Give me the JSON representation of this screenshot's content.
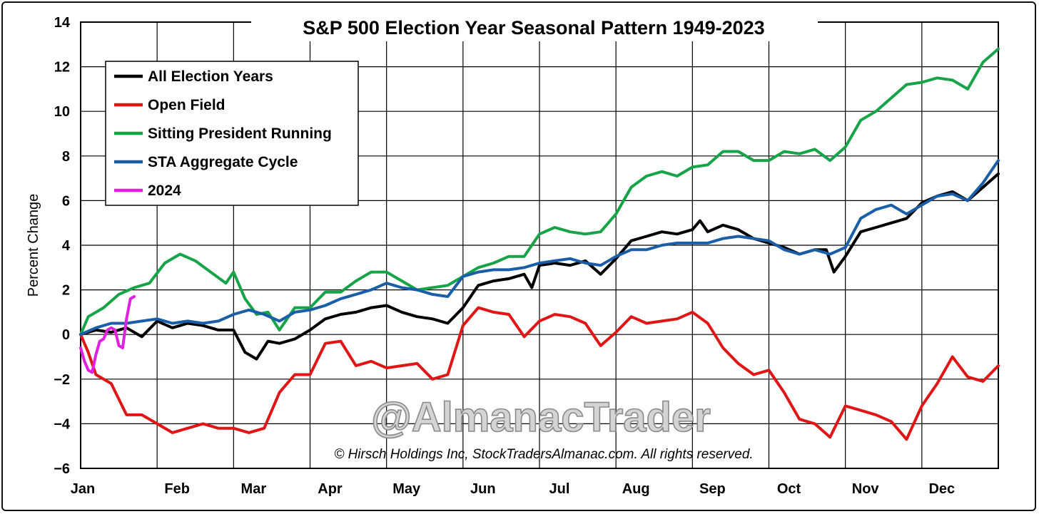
{
  "chart_data": {
    "type": "line",
    "title": "S&P 500 Election Year Seasonal Pattern 1949-2023",
    "ylabel": "Percent Change",
    "xlabel": "",
    "ylim": [
      -6,
      14
    ],
    "yticks": [
      14,
      12,
      10,
      8,
      6,
      4,
      2,
      0,
      -2,
      -4,
      -6
    ],
    "ytick_labels": [
      "14",
      "12",
      "10",
      "8",
      "6",
      "4",
      "2",
      "0",
      "−2",
      "−4",
      "−6"
    ],
    "xlim": [
      0,
      12
    ],
    "month_labels": [
      "Jan",
      "Feb",
      "Mar",
      "Apr",
      "May",
      "Jun",
      "Jul",
      "Aug",
      "Sep",
      "Oct",
      "Nov",
      "Dec"
    ],
    "grid": true,
    "legend_position": "top-left",
    "watermark": "@AlmanacTrader",
    "copyright": "© Hirsch Holdings Inc, StockTradersAlmanac.com. All rights reserved.",
    "series": [
      {
        "name": "All Election Years",
        "color": "#000000",
        "points": [
          [
            0,
            0
          ],
          [
            0.2,
            0.2
          ],
          [
            0.4,
            0.1
          ],
          [
            0.6,
            0.3
          ],
          [
            0.8,
            -0.1
          ],
          [
            1,
            0.6
          ],
          [
            1.2,
            0.3
          ],
          [
            1.4,
            0.5
          ],
          [
            1.6,
            0.4
          ],
          [
            1.8,
            0.2
          ],
          [
            2,
            0.2
          ],
          [
            2.15,
            -0.8
          ],
          [
            2.3,
            -1.1
          ],
          [
            2.45,
            -0.3
          ],
          [
            2.6,
            -0.4
          ],
          [
            2.8,
            -0.2
          ],
          [
            3,
            0.2
          ],
          [
            3.2,
            0.7
          ],
          [
            3.4,
            0.9
          ],
          [
            3.6,
            1
          ],
          [
            3.8,
            1.2
          ],
          [
            4,
            1.3
          ],
          [
            4.2,
            1
          ],
          [
            4.4,
            0.8
          ],
          [
            4.6,
            0.7
          ],
          [
            4.8,
            0.5
          ],
          [
            5,
            1.2
          ],
          [
            5.2,
            2.2
          ],
          [
            5.4,
            2.4
          ],
          [
            5.6,
            2.5
          ],
          [
            5.8,
            2.7
          ],
          [
            5.9,
            2.1
          ],
          [
            6,
            3.1
          ],
          [
            6.2,
            3.2
          ],
          [
            6.4,
            3.1
          ],
          [
            6.6,
            3.3
          ],
          [
            6.8,
            2.7
          ],
          [
            7,
            3.4
          ],
          [
            7.2,
            4.2
          ],
          [
            7.4,
            4.4
          ],
          [
            7.6,
            4.6
          ],
          [
            7.8,
            4.5
          ],
          [
            8,
            4.7
          ],
          [
            8.1,
            5.1
          ],
          [
            8.2,
            4.6
          ],
          [
            8.4,
            4.9
          ],
          [
            8.6,
            4.7
          ],
          [
            8.8,
            4.3
          ],
          [
            9,
            4.1
          ],
          [
            9.2,
            3.9
          ],
          [
            9.4,
            3.6
          ],
          [
            9.6,
            3.8
          ],
          [
            9.75,
            3.8
          ],
          [
            9.85,
            2.8
          ],
          [
            10,
            3.5
          ],
          [
            10.2,
            4.6
          ],
          [
            10.4,
            4.8
          ],
          [
            10.6,
            5
          ],
          [
            10.8,
            5.2
          ],
          [
            11,
            5.9
          ],
          [
            11.2,
            6.2
          ],
          [
            11.4,
            6.4
          ],
          [
            11.6,
            6
          ],
          [
            11.8,
            6.6
          ],
          [
            12,
            7.2
          ]
        ]
      },
      {
        "name": "Open Field",
        "color": "#e01616",
        "points": [
          [
            0,
            0
          ],
          [
            0.1,
            -0.8
          ],
          [
            0.2,
            -1.8
          ],
          [
            0.4,
            -2.2
          ],
          [
            0.6,
            -3.6
          ],
          [
            0.8,
            -3.6
          ],
          [
            1,
            -4
          ],
          [
            1.2,
            -4.4
          ],
          [
            1.4,
            -4.2
          ],
          [
            1.6,
            -4
          ],
          [
            1.8,
            -4.2
          ],
          [
            2,
            -4.2
          ],
          [
            2.2,
            -4.4
          ],
          [
            2.4,
            -4.2
          ],
          [
            2.6,
            -2.6
          ],
          [
            2.8,
            -1.8
          ],
          [
            3,
            -1.8
          ],
          [
            3.2,
            -0.4
          ],
          [
            3.4,
            -0.3
          ],
          [
            3.6,
            -1.4
          ],
          [
            3.8,
            -1.2
          ],
          [
            4,
            -1.5
          ],
          [
            4.2,
            -1.4
          ],
          [
            4.4,
            -1.3
          ],
          [
            4.6,
            -2
          ],
          [
            4.8,
            -1.8
          ],
          [
            5,
            0.4
          ],
          [
            5.2,
            1.2
          ],
          [
            5.4,
            1
          ],
          [
            5.6,
            0.9
          ],
          [
            5.8,
            -0.1
          ],
          [
            6,
            0.6
          ],
          [
            6.2,
            0.9
          ],
          [
            6.4,
            0.8
          ],
          [
            6.6,
            0.5
          ],
          [
            6.8,
            -0.5
          ],
          [
            7,
            0.1
          ],
          [
            7.2,
            0.8
          ],
          [
            7.4,
            0.5
          ],
          [
            7.6,
            0.6
          ],
          [
            7.8,
            0.7
          ],
          [
            8,
            1
          ],
          [
            8.2,
            0.5
          ],
          [
            8.4,
            -0.6
          ],
          [
            8.6,
            -1.3
          ],
          [
            8.8,
            -1.8
          ],
          [
            9,
            -1.6
          ],
          [
            9.2,
            -2.6
          ],
          [
            9.4,
            -3.8
          ],
          [
            9.6,
            -4
          ],
          [
            9.8,
            -4.6
          ],
          [
            10,
            -3.2
          ],
          [
            10.2,
            -3.4
          ],
          [
            10.4,
            -3.6
          ],
          [
            10.6,
            -3.9
          ],
          [
            10.8,
            -4.7
          ],
          [
            11,
            -3.2
          ],
          [
            11.2,
            -2.2
          ],
          [
            11.4,
            -1
          ],
          [
            11.6,
            -1.9
          ],
          [
            11.8,
            -2.1
          ],
          [
            12,
            -1.4
          ]
        ]
      },
      {
        "name": "Sitting President Running",
        "color": "#17a347",
        "points": [
          [
            0,
            0
          ],
          [
            0.1,
            0.8
          ],
          [
            0.3,
            1.2
          ],
          [
            0.5,
            1.8
          ],
          [
            0.7,
            2.1
          ],
          [
            0.9,
            2.3
          ],
          [
            1.1,
            3.2
          ],
          [
            1.3,
            3.6
          ],
          [
            1.5,
            3.3
          ],
          [
            1.7,
            2.8
          ],
          [
            1.9,
            2.3
          ],
          [
            2,
            2.8
          ],
          [
            2.15,
            1.6
          ],
          [
            2.3,
            0.9
          ],
          [
            2.45,
            1
          ],
          [
            2.6,
            0.2
          ],
          [
            2.8,
            1.2
          ],
          [
            3,
            1.2
          ],
          [
            3.2,
            1.9
          ],
          [
            3.4,
            1.9
          ],
          [
            3.6,
            2.4
          ],
          [
            3.8,
            2.8
          ],
          [
            4,
            2.8
          ],
          [
            4.2,
            2.4
          ],
          [
            4.4,
            2
          ],
          [
            4.6,
            2.1
          ],
          [
            4.8,
            2.2
          ],
          [
            5,
            2.6
          ],
          [
            5.2,
            3
          ],
          [
            5.4,
            3.2
          ],
          [
            5.6,
            3.5
          ],
          [
            5.8,
            3.5
          ],
          [
            6,
            4.5
          ],
          [
            6.2,
            4.8
          ],
          [
            6.4,
            4.6
          ],
          [
            6.6,
            4.5
          ],
          [
            6.8,
            4.6
          ],
          [
            7,
            5.4
          ],
          [
            7.2,
            6.6
          ],
          [
            7.4,
            7.1
          ],
          [
            7.6,
            7.3
          ],
          [
            7.8,
            7.1
          ],
          [
            8,
            7.5
          ],
          [
            8.2,
            7.6
          ],
          [
            8.4,
            8.2
          ],
          [
            8.6,
            8.2
          ],
          [
            8.8,
            7.8
          ],
          [
            9,
            7.8
          ],
          [
            9.2,
            8.2
          ],
          [
            9.4,
            8.1
          ],
          [
            9.6,
            8.3
          ],
          [
            9.8,
            7.8
          ],
          [
            10,
            8.4
          ],
          [
            10.2,
            9.6
          ],
          [
            10.4,
            10
          ],
          [
            10.6,
            10.6
          ],
          [
            10.8,
            11.2
          ],
          [
            11,
            11.3
          ],
          [
            11.2,
            11.5
          ],
          [
            11.4,
            11.4
          ],
          [
            11.6,
            11
          ],
          [
            11.8,
            12.2
          ],
          [
            12,
            12.8
          ]
        ]
      },
      {
        "name": "STA Aggregate Cycle",
        "color": "#1a5ea8",
        "points": [
          [
            0,
            0
          ],
          [
            0.2,
            0.3
          ],
          [
            0.4,
            0.5
          ],
          [
            0.6,
            0.5
          ],
          [
            0.8,
            0.6
          ],
          [
            1,
            0.7
          ],
          [
            1.2,
            0.5
          ],
          [
            1.4,
            0.6
          ],
          [
            1.6,
            0.5
          ],
          [
            1.8,
            0.6
          ],
          [
            2,
            0.9
          ],
          [
            2.2,
            1.1
          ],
          [
            2.4,
            0.9
          ],
          [
            2.6,
            0.6
          ],
          [
            2.8,
            1
          ],
          [
            3,
            1.1
          ],
          [
            3.2,
            1.3
          ],
          [
            3.4,
            1.6
          ],
          [
            3.6,
            1.8
          ],
          [
            3.8,
            2
          ],
          [
            4,
            2.3
          ],
          [
            4.2,
            2.1
          ],
          [
            4.4,
            2
          ],
          [
            4.6,
            1.8
          ],
          [
            4.8,
            1.7
          ],
          [
            5,
            2.6
          ],
          [
            5.2,
            2.8
          ],
          [
            5.4,
            2.9
          ],
          [
            5.6,
            2.9
          ],
          [
            5.8,
            3
          ],
          [
            6,
            3.2
          ],
          [
            6.2,
            3.3
          ],
          [
            6.4,
            3.4
          ],
          [
            6.6,
            3.2
          ],
          [
            6.8,
            3.1
          ],
          [
            7,
            3.5
          ],
          [
            7.2,
            3.8
          ],
          [
            7.4,
            3.8
          ],
          [
            7.6,
            4
          ],
          [
            7.8,
            4.1
          ],
          [
            8,
            4.1
          ],
          [
            8.2,
            4.1
          ],
          [
            8.4,
            4.3
          ],
          [
            8.6,
            4.4
          ],
          [
            8.8,
            4.3
          ],
          [
            9,
            4.2
          ],
          [
            9.2,
            3.8
          ],
          [
            9.4,
            3.6
          ],
          [
            9.6,
            3.8
          ],
          [
            9.8,
            3.6
          ],
          [
            10,
            3.9
          ],
          [
            10.2,
            5.2
          ],
          [
            10.4,
            5.6
          ],
          [
            10.6,
            5.8
          ],
          [
            10.8,
            5.4
          ],
          [
            11,
            5.8
          ],
          [
            11.2,
            6.2
          ],
          [
            11.4,
            6.3
          ],
          [
            11.6,
            6
          ],
          [
            11.8,
            6.8
          ],
          [
            12,
            7.8
          ]
        ]
      },
      {
        "name": "2024",
        "color": "#e020e0",
        "points": [
          [
            0,
            -0.6
          ],
          [
            0.05,
            -1.2
          ],
          [
            0.1,
            -1.6
          ],
          [
            0.15,
            -1.7
          ],
          [
            0.2,
            -0.9
          ],
          [
            0.25,
            -0.3
          ],
          [
            0.3,
            -0.2
          ],
          [
            0.35,
            0.2
          ],
          [
            0.4,
            0.3
          ],
          [
            0.45,
            0.2
          ],
          [
            0.5,
            -0.5
          ],
          [
            0.55,
            -0.6
          ],
          [
            0.6,
            0.7
          ],
          [
            0.65,
            1.6
          ],
          [
            0.7,
            1.7
          ]
        ]
      }
    ]
  }
}
